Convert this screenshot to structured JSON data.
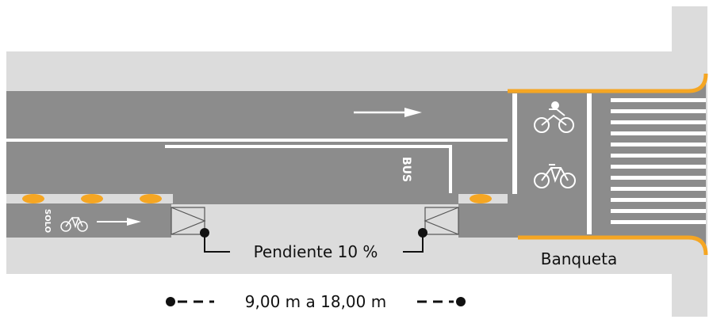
{
  "labels": {
    "slope": "Pendiente 10 %",
    "sidewalk": "Banqueta",
    "dimension": "9,00 m a 18,00 m",
    "bus_marking": "BUS",
    "bike_only_marking": "SOLO"
  },
  "colors": {
    "sidewalk": "#dcdcdc",
    "roadway": "#8c8c8c",
    "marking": "#ffffff",
    "curb_accent": "#f5a623",
    "text": "#111111"
  },
  "icons": [
    "direction-arrow-icon",
    "motorcycle-icon",
    "bicycle-icon",
    "bicycle-icon",
    "bicycle-icon",
    "direction-arrow-icon"
  ]
}
